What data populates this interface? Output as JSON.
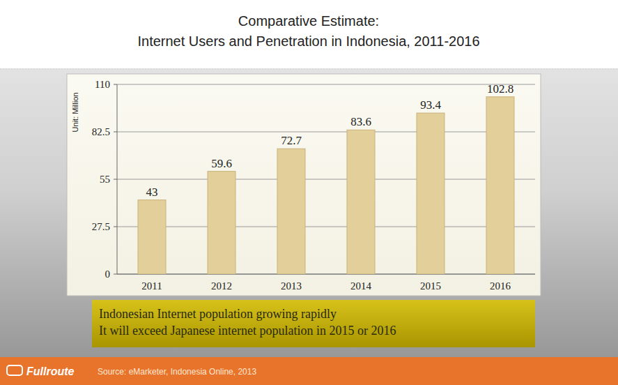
{
  "chart_data": {
    "type": "bar",
    "title": "Comparative Estimate:",
    "subtitle": "Internet Users and Penetration in Indonesia, 2011-2016",
    "y_label": "Unit: Million",
    "categories": [
      "2011",
      "2012",
      "2013",
      "2014",
      "2015",
      "2016"
    ],
    "values": [
      43,
      59.6,
      72.7,
      83.6,
      93.4,
      102.8
    ],
    "color": "#e2cf9a",
    "ylim": [
      0,
      110
    ],
    "yticks": [
      0,
      27.5,
      55,
      82.5,
      110
    ],
    "grid": true,
    "data_labels": true,
    "annotations": [
      "Indonesian Internet population growing rapidly",
      "It will exceed Japanese internet population in 2015 or 2016"
    ],
    "brand": "Fullroute",
    "source": "Source: eMarketer, Indonesia Online, 2013"
  }
}
